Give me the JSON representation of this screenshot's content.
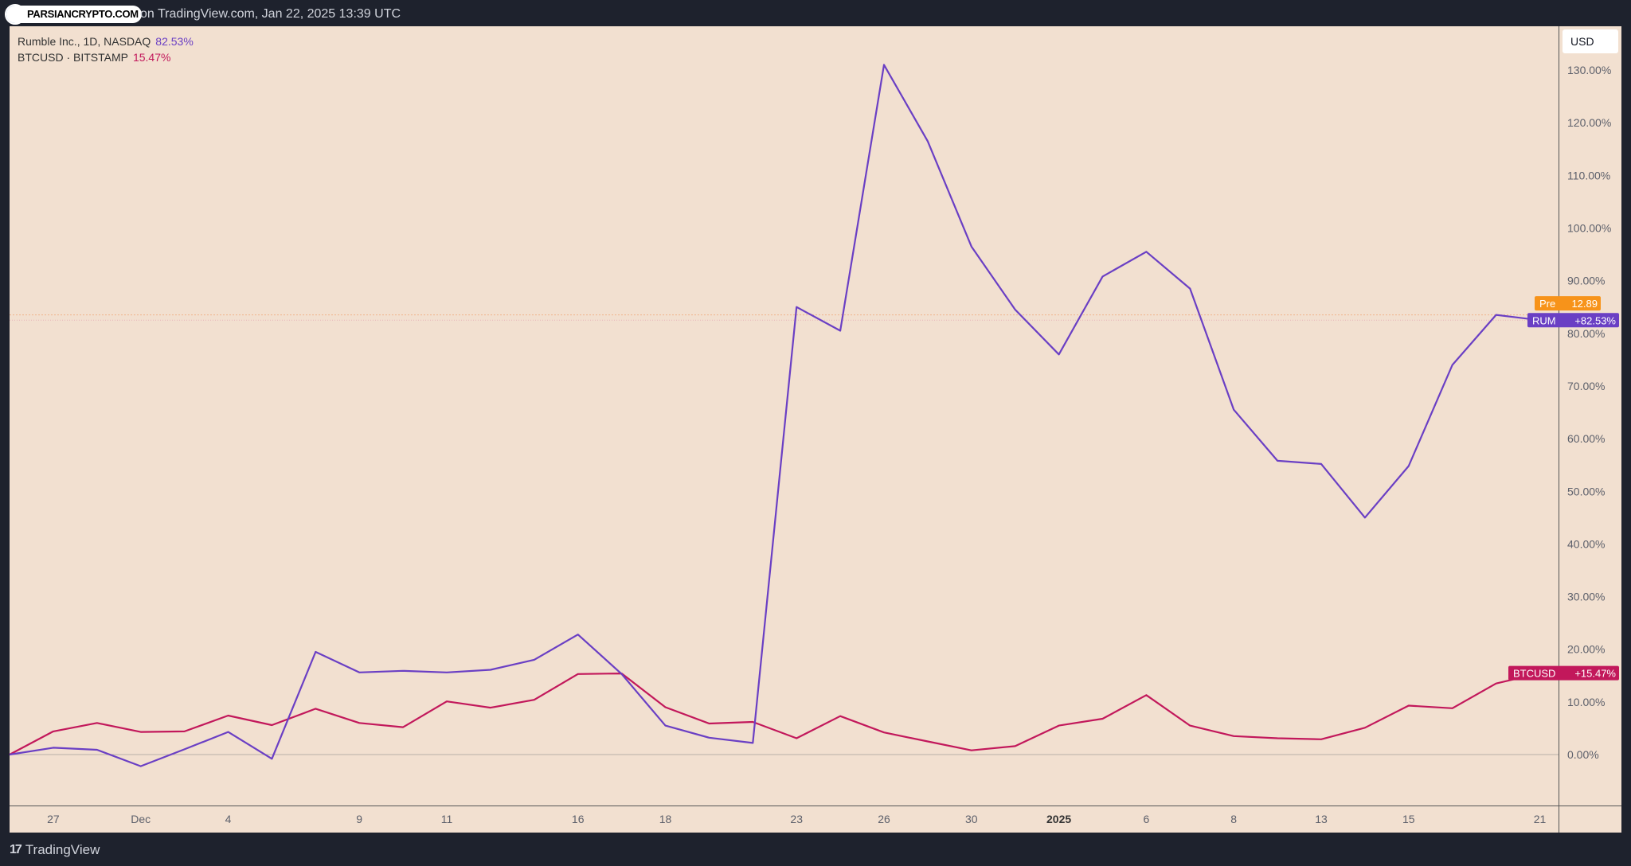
{
  "header": {
    "title": "Rumble Inc., 1D, NASDAQ",
    "published_text": "on TradingView.com, Jan 22, 2025 13:39 UTC",
    "watermark_logo_text": "PARSIANCRYPTO.COM"
  },
  "footer": {
    "brand": "TradingView"
  },
  "currency_button": "USD",
  "legend": [
    {
      "label": "Rumble Inc., 1D, NASDAQ",
      "value": "82.53%"
    },
    {
      "label": "BTCUSD · BITSTAMP",
      "value": "15.47%"
    }
  ],
  "tags": {
    "pre": {
      "label": "Pre",
      "value": "12.89"
    },
    "rum": {
      "label": "RUM",
      "value": "+82.53%"
    },
    "btc": {
      "label": "BTCUSD",
      "value": "+15.47%"
    }
  },
  "colors": {
    "rum": "#6a3fc4",
    "btc": "#c2185b",
    "pre": "#f7931a",
    "background": "#f2e0d0"
  },
  "chart_data": {
    "type": "line",
    "title": "",
    "xlabel": "",
    "ylabel": "",
    "ylim": [
      -10,
      137
    ],
    "yticks": [
      "0.00%",
      "10.00%",
      "20.00%",
      "30.00%",
      "40.00%",
      "50.00%",
      "60.00%",
      "70.00%",
      "80.00%",
      "90.00%",
      "100.00%",
      "110.00%",
      "120.00%",
      "130.00%"
    ],
    "ytick_values": [
      0,
      10,
      20,
      30,
      40,
      50,
      60,
      70,
      80,
      90,
      100,
      110,
      120,
      130
    ],
    "x_tick_labels": [
      {
        "label": "27",
        "index": 1
      },
      {
        "label": "Dec",
        "index": 3
      },
      {
        "label": "4",
        "index": 5
      },
      {
        "label": "9",
        "index": 8
      },
      {
        "label": "11",
        "index": 10
      },
      {
        "label": "16",
        "index": 13
      },
      {
        "label": "18",
        "index": 15
      },
      {
        "label": "23",
        "index": 18
      },
      {
        "label": "26",
        "index": 20
      },
      {
        "label": "30",
        "index": 22
      },
      {
        "label": "2025",
        "index": 24,
        "bold": true
      },
      {
        "label": "6",
        "index": 26
      },
      {
        "label": "8",
        "index": 28
      },
      {
        "label": "13",
        "index": 30
      },
      {
        "label": "15",
        "index": 32
      },
      {
        "label": "21",
        "index": 35
      }
    ],
    "x_count": 36,
    "series": [
      {
        "name": "RUM",
        "values": [
          0,
          1.3,
          0.9,
          -2.2,
          1.0,
          4.3,
          -0.8,
          19.5,
          15.6,
          15.9,
          15.6,
          16.1,
          18.0,
          22.8,
          15.3,
          5.5,
          3.2,
          2.2,
          85.0,
          80.5,
          131.0,
          116.5,
          96.5,
          84.5,
          76.0,
          90.8,
          95.5,
          88.5,
          65.5,
          55.8,
          55.2,
          45.0,
          54.8,
          74.0,
          83.5,
          82.5
        ]
      },
      {
        "name": "BTCUSD",
        "values": [
          0,
          4.4,
          6.0,
          4.3,
          4.4,
          7.4,
          5.6,
          8.7,
          6.0,
          5.2,
          10.1,
          8.9,
          10.4,
          15.3,
          15.4,
          9.0,
          5.9,
          6.2,
          3.1,
          7.3,
          4.2,
          2.5,
          0.8,
          1.6,
          5.5,
          6.8,
          11.3,
          5.5,
          3.5,
          3.1,
          2.9,
          5.1,
          9.3,
          8.8,
          13.5,
          15.47
        ]
      }
    ],
    "pre_market_level": 83.5,
    "grid": false,
    "legend_position": "top-left"
  }
}
